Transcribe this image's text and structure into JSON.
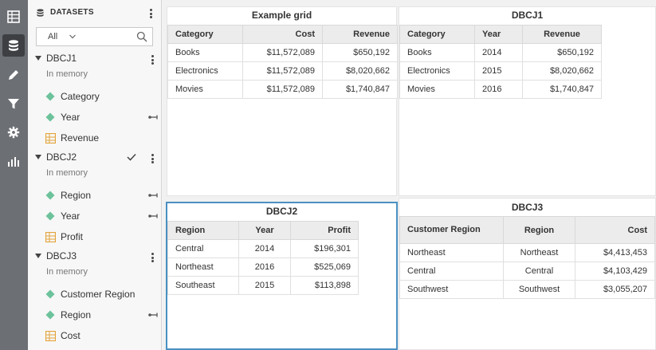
{
  "rail": {
    "icons": [
      "grid-icon",
      "database-icon",
      "pencil-icon",
      "filter-icon",
      "gear-icon",
      "chart-icon"
    ]
  },
  "panel": {
    "title": "DATASETS",
    "search": {
      "filter_value": "All"
    },
    "datasets": [
      {
        "name": "DBCJ1",
        "subtitle": "In memory",
        "fields": [
          {
            "label": "Category",
            "type": "attribute"
          },
          {
            "label": "Year",
            "type": "attribute"
          },
          {
            "label": "Revenue",
            "type": "metric"
          }
        ]
      },
      {
        "name": "DBCJ2",
        "subtitle": "In memory",
        "fields": [
          {
            "label": "Region",
            "type": "attribute"
          },
          {
            "label": "Year",
            "type": "attribute"
          },
          {
            "label": "Profit",
            "type": "metric"
          }
        ]
      },
      {
        "name": "DBCJ3",
        "subtitle": "In memory",
        "fields": [
          {
            "label": "Customer Region",
            "type": "attribute"
          },
          {
            "label": "Region",
            "type": "attribute"
          },
          {
            "label": "Cost",
            "type": "metric"
          }
        ]
      }
    ]
  },
  "grids": {
    "example": {
      "title": "Example grid",
      "headers": [
        "Category",
        "Cost",
        "Revenue"
      ],
      "rows": [
        [
          "Books",
          "$11,572,089",
          "$650,192"
        ],
        [
          "Electronics",
          "$11,572,089",
          "$8,020,662"
        ],
        [
          "Movies",
          "$11,572,089",
          "$1,740,847"
        ]
      ]
    },
    "dbcj1": {
      "title": "DBCJ1",
      "headers": [
        "Category",
        "Year",
        "Revenue"
      ],
      "rows": [
        [
          "Books",
          "2014",
          "$650,192"
        ],
        [
          "Electronics",
          "2015",
          "$8,020,662"
        ],
        [
          "Movies",
          "2016",
          "$1,740,847"
        ]
      ]
    },
    "dbcj2": {
      "title": "DBCJ2",
      "headers": [
        "Region",
        "Year",
        "Profit"
      ],
      "rows": [
        [
          "Central",
          "2014",
          "$196,301"
        ],
        [
          "Northeast",
          "2016",
          "$525,069"
        ],
        [
          "Southeast",
          "2015",
          "$113,898"
        ]
      ]
    },
    "dbcj3": {
      "title": "DBCJ3",
      "headers": [
        "Customer Region",
        "Region",
        "Cost"
      ],
      "rows": [
        [
          "Northeast",
          "Northeast",
          "$4,413,453"
        ],
        [
          "Central",
          "Central",
          "$4,103,429"
        ],
        [
          "Southwest",
          "Southwest",
          "$3,055,207"
        ]
      ]
    }
  },
  "colors": {
    "rail": "#6c6f74",
    "attribute": "#6cc29b",
    "metric": "#e3a33a",
    "selection": "#4a90c2"
  }
}
